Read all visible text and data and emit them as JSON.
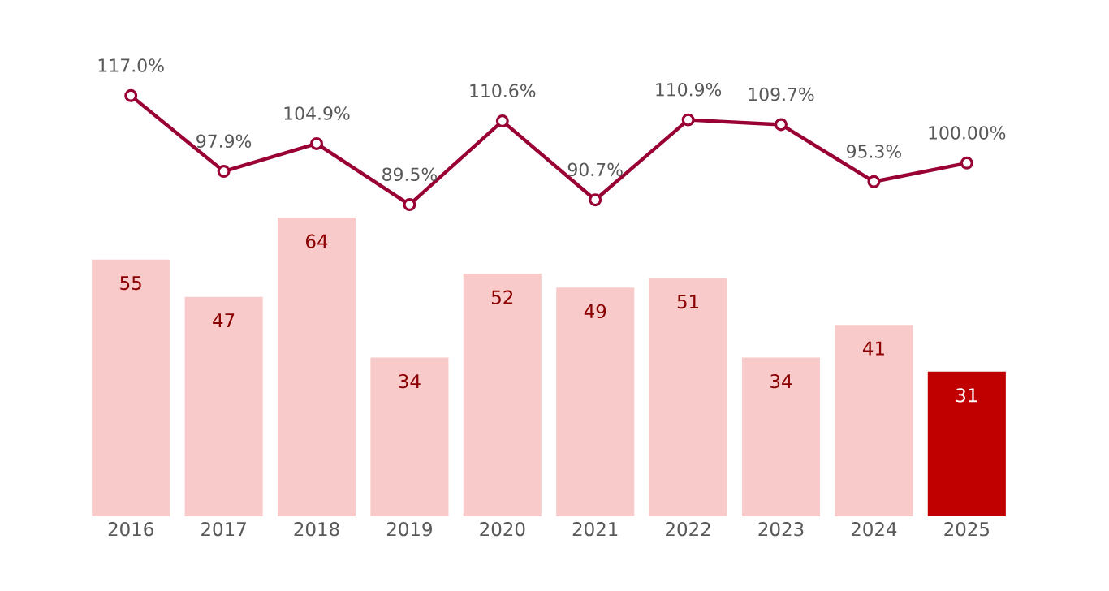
{
  "chart_data": [
    {
      "type": "bar",
      "categories": [
        "2016",
        "2017",
        "2018",
        "2019",
        "2020",
        "2021",
        "2022",
        "2023",
        "2024",
        "2025"
      ],
      "tick_labels": "x",
      "values": [
        55,
        47,
        64,
        34,
        52,
        49,
        51,
        34,
        41,
        31
      ],
      "colors": [
        "#f8cbca",
        "#f8cbca",
        "#f8cbca",
        "#f8cbca",
        "#f8cbca",
        "#f8cbca",
        "#f8cbca",
        "#f8cbca",
        "#f8cbca",
        "#c00000"
      ],
      "value_labels": [
        "55",
        "47",
        "64",
        "34",
        "52",
        "49",
        "51",
        "34",
        "41",
        "31"
      ]
    },
    {
      "type": "line",
      "categories": [
        "2016",
        "2017",
        "2018",
        "2019",
        "2020",
        "2021",
        "2022",
        "2023",
        "2024",
        "2025"
      ],
      "tick_labels": false,
      "color": "#990033",
      "marker": "circle",
      "values": [
        117.0,
        97.9,
        104.9,
        89.5,
        110.6,
        90.7,
        110.9,
        109.7,
        95.3,
        100.0
      ],
      "value_labels": [
        "117.0%",
        "97.9%",
        "104.9%",
        "89.5%",
        "110.6%",
        "90.7%",
        "110.9%",
        "109.7%",
        "95.3%",
        "100.00%"
      ]
    }
  ]
}
